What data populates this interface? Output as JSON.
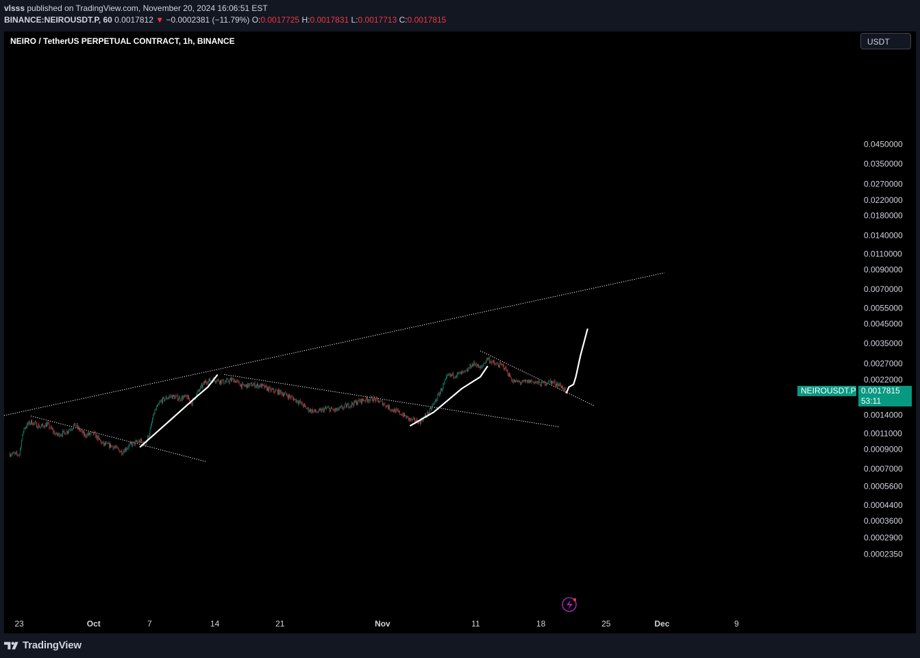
{
  "header": {
    "publisher": "vlsss",
    "published_text": "published on TradingView.com, November 20, 2024 16:06:51 EST",
    "symbol_line": "BINANCE:NEIROUSDT.P, 60",
    "last": "0.0017812",
    "change_arrow": "▼",
    "change": "−0.0002381 (−11.79%)",
    "open_label": "O:",
    "open": "0.0017725",
    "high_label": "H:",
    "high": "0.0017831",
    "low_label": "L:",
    "low": "0.0017713",
    "close_label": "C:",
    "close": "0.0017815"
  },
  "toolbar": {
    "currency_label": "USDT"
  },
  "price_tag": {
    "symbol": "NEIROUSDT.P",
    "value": "0.0017815",
    "countdown": "53:11"
  },
  "footer": {
    "brand": "TradingView",
    "brand_icon": "tradingview-logo-icon"
  },
  "colors": {
    "up": "#089981",
    "down": "#f23645",
    "accent": "#089981",
    "drawing_white": "#ffffff",
    "background": "#000000",
    "chrome": "#131722"
  },
  "chart_data": {
    "type": "candlestick",
    "title": "NEIRO / TetherUS PERPETUAL CONTRACT, 1h, BINANCE",
    "scale": "log",
    "x_tick_labels": [
      {
        "label": "23",
        "date": "2024-09-23",
        "bold": false
      },
      {
        "label": "Oct",
        "date": "2024-10-01",
        "bold": true
      },
      {
        "label": "7",
        "date": "2024-10-07",
        "bold": false
      },
      {
        "label": "14",
        "date": "2024-10-14",
        "bold": false
      },
      {
        "label": "21",
        "date": "2024-10-21",
        "bold": false
      },
      {
        "label": "Nov",
        "date": "2024-11-01",
        "bold": true
      },
      {
        "label": "11",
        "date": "2024-11-11",
        "bold": false
      },
      {
        "label": "18",
        "date": "2024-11-18",
        "bold": false
      },
      {
        "label": "25",
        "date": "2024-11-25",
        "bold": false
      },
      {
        "label": "Dec",
        "date": "2024-12-01",
        "bold": true
      },
      {
        "label": "9",
        "date": "2024-12-09",
        "bold": false
      }
    ],
    "y_tick_labels": [
      "0.0450000",
      "0.0350000",
      "0.0270000",
      "0.0220000",
      "0.0180000",
      "0.0140000",
      "0.0110000",
      "0.0090000",
      "0.0070000",
      "0.0055000",
      "0.0045000",
      "0.0035000",
      "0.0027000",
      "0.0022000",
      "0.0014000",
      "0.0011000",
      "0.0009000",
      "0.0007000",
      "0.0005600",
      "0.0004400",
      "0.0003600",
      "0.0002900",
      "0.0002350"
    ],
    "price_series": [
      [
        "2024-09-22T00:00",
        0.00085
      ],
      [
        "2024-09-23T00:00",
        0.00084
      ],
      [
        "2024-09-23T12:00",
        0.00118
      ],
      [
        "2024-09-24T06:00",
        0.00128
      ],
      [
        "2024-09-25T06:00",
        0.0012
      ],
      [
        "2024-09-26T00:00",
        0.00124
      ],
      [
        "2024-09-27T00:00",
        0.00108
      ],
      [
        "2024-09-28T00:00",
        0.00112
      ],
      [
        "2024-09-29T00:00",
        0.00123
      ],
      [
        "2024-09-30T00:00",
        0.00108
      ],
      [
        "2024-10-01T00:00",
        0.0011
      ],
      [
        "2024-10-02T00:00",
        0.00096
      ],
      [
        "2024-10-03T00:00",
        0.00094
      ],
      [
        "2024-10-04T00:00",
        0.00087
      ],
      [
        "2024-10-05T00:00",
        0.00096
      ],
      [
        "2024-10-06T00:00",
        0.001
      ],
      [
        "2024-10-06T12:00",
        0.00095
      ],
      [
        "2024-10-07T00:00",
        0.00112
      ],
      [
        "2024-10-07T12:00",
        0.00145
      ],
      [
        "2024-10-08T06:00",
        0.00168
      ],
      [
        "2024-10-09T06:00",
        0.00178
      ],
      [
        "2024-10-10T06:00",
        0.00173
      ],
      [
        "2024-10-11T00:00",
        0.00176
      ],
      [
        "2024-10-11T12:00",
        0.00163
      ],
      [
        "2024-10-12T06:00",
        0.0019
      ],
      [
        "2024-10-13T00:00",
        0.00215
      ],
      [
        "2024-10-14T00:00",
        0.0022
      ],
      [
        "2024-10-15T00:00",
        0.00213
      ],
      [
        "2024-10-16T00:00",
        0.0022
      ],
      [
        "2024-10-17T00:00",
        0.00202
      ],
      [
        "2024-10-18T00:00",
        0.00206
      ],
      [
        "2024-10-19T00:00",
        0.00203
      ],
      [
        "2024-10-20T00:00",
        0.00192
      ],
      [
        "2024-10-21T00:00",
        0.00187
      ],
      [
        "2024-10-22T00:00",
        0.00177
      ],
      [
        "2024-10-23T00:00",
        0.00166
      ],
      [
        "2024-10-24T00:00",
        0.0015
      ],
      [
        "2024-10-25T00:00",
        0.00145
      ],
      [
        "2024-10-26T00:00",
        0.00152
      ],
      [
        "2024-10-27T00:00",
        0.00148
      ],
      [
        "2024-10-28T00:00",
        0.00156
      ],
      [
        "2024-10-29T00:00",
        0.00163
      ],
      [
        "2024-10-30T00:00",
        0.0017
      ],
      [
        "2024-10-31T00:00",
        0.00172
      ],
      [
        "2024-11-01T00:00",
        0.00163
      ],
      [
        "2024-11-02T00:00",
        0.0015
      ],
      [
        "2024-11-03T00:00",
        0.00142
      ],
      [
        "2024-11-04T00:00",
        0.00131
      ],
      [
        "2024-11-05T00:00",
        0.00128
      ],
      [
        "2024-11-06T00:00",
        0.00145
      ],
      [
        "2024-11-07T00:00",
        0.0018
      ],
      [
        "2024-11-08T00:00",
        0.0023
      ],
      [
        "2024-11-09T00:00",
        0.00235
      ],
      [
        "2024-11-10T00:00",
        0.00242
      ],
      [
        "2024-11-10T12:00",
        0.00265
      ],
      [
        "2024-11-11T00:00",
        0.0027
      ],
      [
        "2024-11-11T12:00",
        0.00252
      ],
      [
        "2024-11-12T06:00",
        0.0029
      ],
      [
        "2024-11-13T00:00",
        0.00268
      ],
      [
        "2024-11-14T00:00",
        0.00262
      ],
      [
        "2024-11-15T00:00",
        0.00215
      ],
      [
        "2024-11-16T00:00",
        0.00212
      ],
      [
        "2024-11-17T00:00",
        0.00216
      ],
      [
        "2024-11-18T00:00",
        0.00208
      ],
      [
        "2024-11-19T00:00",
        0.00215
      ],
      [
        "2024-11-20T00:00",
        0.00205
      ],
      [
        "2024-11-20T12:00",
        0.00196
      ],
      [
        "2024-11-20T16:00",
        0.00178
      ]
    ],
    "drawings": [
      {
        "name": "upper-trendline",
        "style": "dotted",
        "points": [
          [
            "2024-09-20T00:00",
            0.00134
          ],
          [
            "2024-12-01T06:00",
            0.00865
          ]
        ]
      },
      {
        "name": "sept-downtrend",
        "style": "dotted",
        "points": [
          [
            "2024-09-24T06:00",
            0.00138
          ],
          [
            "2024-10-13T00:00",
            0.00077
          ]
        ]
      },
      {
        "name": "oct-downtrend",
        "style": "dotted",
        "points": [
          [
            "2024-10-15T00:00",
            0.00235
          ],
          [
            "2024-11-20T00:00",
            0.0012
          ]
        ]
      },
      {
        "name": "nov-downtrend",
        "style": "dotted",
        "points": [
          [
            "2024-11-11T12:00",
            0.00318
          ],
          [
            "2024-11-23T18:00",
            0.00157
          ]
        ]
      },
      {
        "name": "oct-rally-stroke",
        "style": "solid",
        "points": [
          [
            "2024-10-06T00:00",
            0.00093
          ],
          [
            "2024-10-08T06:00",
            0.00118
          ],
          [
            "2024-10-12T00:00",
            0.00176
          ],
          [
            "2024-10-13T06:00",
            0.002
          ],
          [
            "2024-10-14T06:00",
            0.00233
          ]
        ]
      },
      {
        "name": "nov-rally-stroke",
        "style": "solid",
        "points": [
          [
            "2024-11-04T00:00",
            0.00122
          ],
          [
            "2024-11-06T12:00",
            0.00145
          ],
          [
            "2024-11-09T12:00",
            0.00196
          ],
          [
            "2024-11-11T12:00",
            0.00228
          ],
          [
            "2024-11-12T06:00",
            0.0026
          ]
        ]
      },
      {
        "name": "projection-path",
        "style": "solid",
        "points": [
          [
            "2024-11-20T18:00",
            0.00186
          ],
          [
            "2024-11-21T00:00",
            0.002
          ],
          [
            "2024-11-21T12:00",
            0.00207
          ],
          [
            "2024-11-21T18:00",
            0.00228
          ],
          [
            "2024-11-22T06:00",
            0.003
          ],
          [
            "2024-11-23T00:00",
            0.0042
          ]
        ]
      }
    ]
  }
}
